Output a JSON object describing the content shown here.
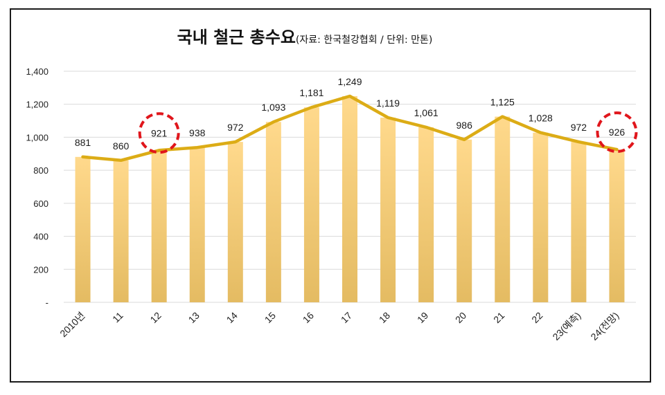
{
  "chart_data": {
    "type": "bar",
    "title": "국내 철근 총수요",
    "subtitle": "(자료: 한국철강협회 / 단위: 만톤)",
    "categories": [
      "2010년",
      "11",
      "12",
      "13",
      "14",
      "15",
      "16",
      "17",
      "18",
      "19",
      "20",
      "21",
      "22",
      "23(예측)",
      "24(전망)"
    ],
    "series": [
      {
        "type": "bar",
        "values": [
          881,
          860,
          921,
          938,
          972,
          1093,
          1181,
          1249,
          1119,
          1061,
          986,
          1125,
          1028,
          972,
          926
        ]
      },
      {
        "type": "line",
        "values": [
          881,
          860,
          921,
          938,
          972,
          1093,
          1181,
          1249,
          1119,
          1061,
          986,
          1125,
          1028,
          972,
          926
        ]
      }
    ],
    "data_labels": [
      "881",
      "860",
      "921",
      "938",
      "972",
      "1,093",
      "1,181",
      "1,249",
      "1,119",
      "1,061",
      "986",
      "1,125",
      "1,028",
      "972",
      "926"
    ],
    "ylim": [
      0,
      1400
    ],
    "yticks": [
      {
        "value": 0,
        "label": "-"
      },
      {
        "value": 200,
        "label": "200"
      },
      {
        "value": 400,
        "label": "400"
      },
      {
        "value": 600,
        "label": "600"
      },
      {
        "value": 800,
        "label": "800"
      },
      {
        "value": 1000,
        "label": "1,000"
      },
      {
        "value": 1200,
        "label": "1,200"
      },
      {
        "value": 1400,
        "label": "1,400"
      }
    ],
    "grid": true,
    "highlighted_categories": [
      "12",
      "24(전망)"
    ],
    "colors": {
      "bar_top": "#ffd98c",
      "bar_bottom": "#e4bb62",
      "line": "#dcac16",
      "highlight": "#e0161c",
      "grid": "#d9d9d9"
    }
  }
}
